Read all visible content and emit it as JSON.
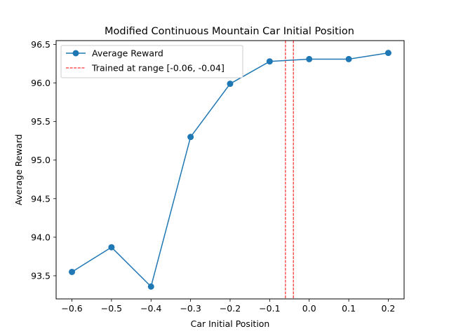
{
  "chart_data": {
    "type": "line",
    "title": "Modified Continuous Mountain Car Initial Position",
    "xlabel": "Car Initial Position",
    "ylabel": "Average Reward",
    "xlim": [
      -0.64,
      0.24
    ],
    "ylim": [
      93.2,
      96.55
    ],
    "xticks": [
      -0.6,
      -0.5,
      -0.4,
      -0.3,
      -0.2,
      -0.1,
      0.0,
      0.1,
      0.2
    ],
    "xtick_labels": [
      "−0.6",
      "−0.5",
      "−0.4",
      "−0.3",
      "−0.2",
      "−0.1",
      "0.0",
      "0.1",
      "0.2"
    ],
    "yticks": [
      93.5,
      94.0,
      94.5,
      95.0,
      95.5,
      96.0,
      96.5
    ],
    "ytick_labels": [
      "93.5",
      "94.0",
      "94.5",
      "95.0",
      "95.5",
      "96.0",
      "96.5"
    ],
    "grid": false,
    "legend_position": "top-left",
    "series": [
      {
        "name": "Average Reward",
        "color": "#1f77b4",
        "marker": "circle",
        "x": [
          -0.6,
          -0.5,
          -0.4,
          -0.3,
          -0.2,
          -0.1,
          0.0,
          0.1,
          0.2
        ],
        "y": [
          93.55,
          93.87,
          93.36,
          95.3,
          95.99,
          96.28,
          96.31,
          96.31,
          96.39
        ]
      }
    ],
    "vlines": {
      "name": "Trained at range [-0.06, -0.04]",
      "color": "#ff0000",
      "style": "dashed",
      "x": [
        -0.06,
        -0.04
      ]
    }
  }
}
